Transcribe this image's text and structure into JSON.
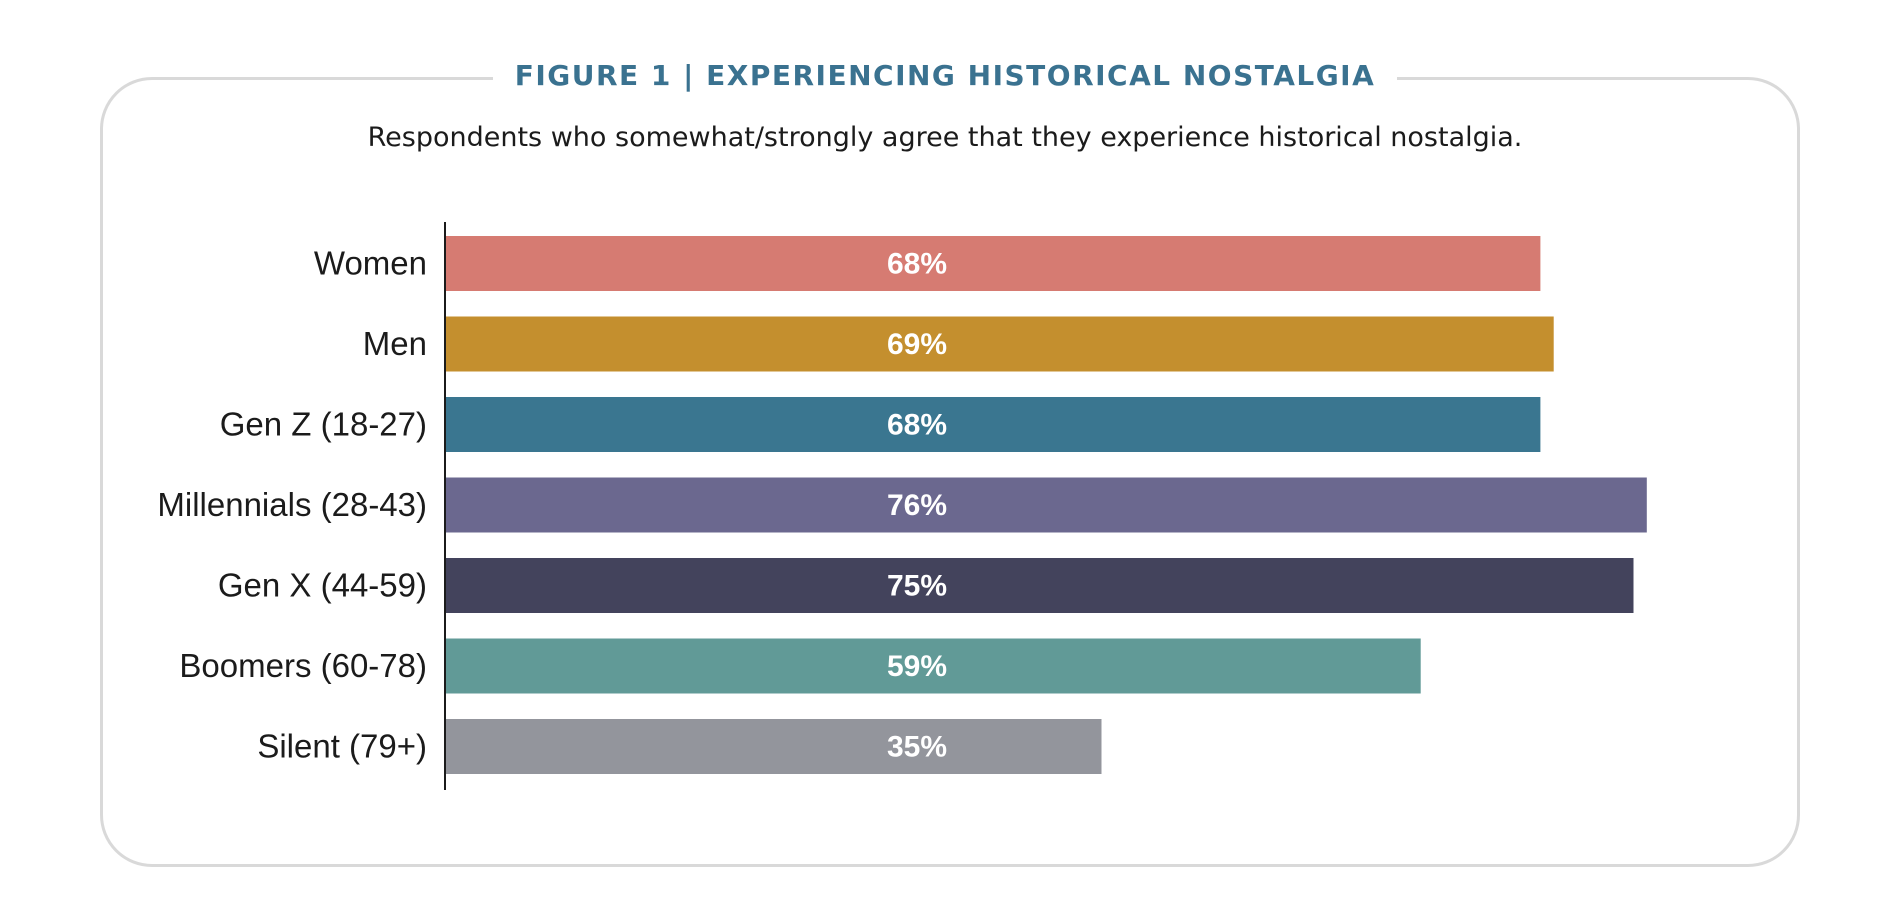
{
  "header": {
    "title": "FIGURE 1  |  EXPERIENCING HISTORICAL NOSTALGIA",
    "subtitle": "Respondents who somewhat/strongly agree that they experience historical nostalgia."
  },
  "chart_data": {
    "type": "bar",
    "orientation": "horizontal",
    "title": "FIGURE 1  |  EXPERIENCING HISTORICAL NOSTALGIA",
    "subtitle": "Respondents who somewhat/strongly agree that they experience historical nostalgia.",
    "xlabel": "",
    "ylabel": "",
    "categories": [
      "Women",
      "Men",
      "Gen Z (18-27)",
      "Millennials (28-43)",
      "Gen X (44-59)",
      "Boomers (60-78)",
      "Silent (79+)"
    ],
    "values": [
      68,
      69,
      68,
      76,
      75,
      59,
      35
    ],
    "value_labels": [
      "68%",
      "69%",
      "68%",
      "76%",
      "75%",
      "59%",
      "35%"
    ],
    "colors": [
      "#d67b72",
      "#c48f2e",
      "#3a7690",
      "#6b688f",
      "#43435c",
      "#619a97",
      "#93959c"
    ],
    "grid": false,
    "legend": "none"
  }
}
